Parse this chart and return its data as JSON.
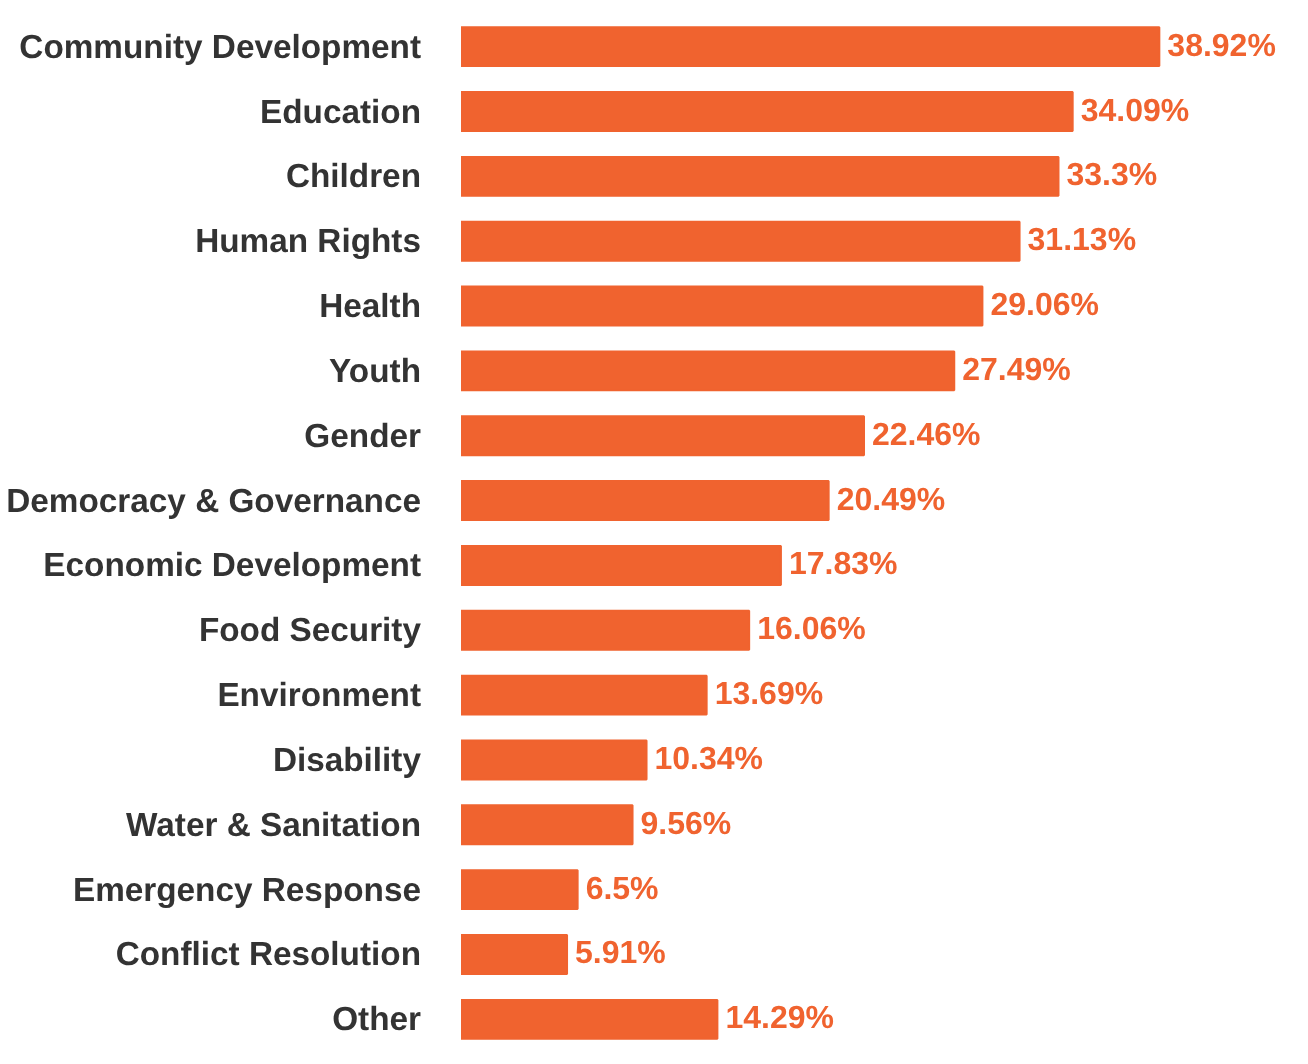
{
  "chart_data": {
    "type": "bar",
    "orientation": "horizontal",
    "tick_labels": "y",
    "categories": [
      "Community Development",
      "Education",
      "Children",
      "Human Rights",
      "Health",
      "Youth",
      "Gender",
      "Democracy & Governance",
      "Economic Development",
      "Food Security",
      "Environment",
      "Disability",
      "Water & Sanitation",
      "Emergency Response",
      "Conflict Resolution",
      "Other"
    ],
    "values": [
      38.92,
      34.09,
      33.3,
      31.13,
      29.06,
      27.49,
      22.46,
      20.49,
      17.83,
      16.06,
      13.69,
      10.34,
      9.56,
      6.5,
      5.91,
      14.29
    ],
    "value_labels": [
      "38.92%",
      "34.09%",
      "33.3%",
      "31.13%",
      "29.06%",
      "27.49%",
      "22.46%",
      "20.49%",
      "17.83%",
      "16.06%",
      "13.69%",
      "10.34%",
      "9.56%",
      "6.5%",
      "5.91%",
      "14.29%"
    ],
    "color": "#f0632f",
    "grid": false
  }
}
